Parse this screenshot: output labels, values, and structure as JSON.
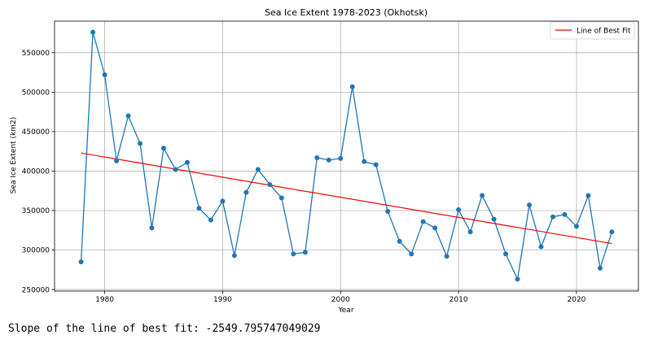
{
  "chart_data": {
    "type": "line",
    "title": "Sea Ice Extent 1978-2023 (Okhotsk)",
    "xlabel": "Year",
    "ylabel": "Sea Ice Extent (km2)",
    "xlim": [
      1975.75,
      2025.25
    ],
    "ylim": [
      248000,
      590000
    ],
    "x_ticks": [
      1980,
      1990,
      2000,
      2010,
      2020
    ],
    "y_ticks": [
      250000,
      300000,
      350000,
      400000,
      450000,
      500000,
      550000
    ],
    "grid": true,
    "legend_position": "top-right",
    "series": [
      {
        "role": "observed",
        "color": "#1f77b4",
        "marker": "circle",
        "x": [
          1978,
          1979,
          1980,
          1981,
          1982,
          1983,
          1984,
          1985,
          1986,
          1987,
          1988,
          1989,
          1990,
          1991,
          1992,
          1993,
          1994,
          1995,
          1996,
          1997,
          1998,
          1999,
          2000,
          2001,
          2002,
          2003,
          2004,
          2005,
          2006,
          2007,
          2008,
          2009,
          2010,
          2011,
          2012,
          2013,
          2014,
          2015,
          2016,
          2017,
          2018,
          2019,
          2020,
          2021,
          2022,
          2023
        ],
        "values": [
          285000,
          576000,
          522000,
          413000,
          470000,
          435000,
          328000,
          429000,
          402000,
          411000,
          353000,
          338000,
          362000,
          293000,
          373000,
          402000,
          383000,
          366000,
          295000,
          297000,
          417000,
          414000,
          416000,
          507000,
          412000,
          408000,
          349000,
          311000,
          295000,
          336000,
          328000,
          292000,
          351000,
          323000,
          369000,
          339000,
          295000,
          263000,
          357000,
          304000,
          342000,
          345000,
          330000,
          369000,
          277000,
          323000
        ]
      },
      {
        "name": "Line of Best Fit",
        "role": "fit",
        "color": "#ff0000",
        "x": [
          1978,
          2023
        ],
        "values": [
          422900,
          308200
        ]
      }
    ]
  },
  "output": {
    "slope_text": "Slope of the line of best fit: -2549.795747049029"
  }
}
